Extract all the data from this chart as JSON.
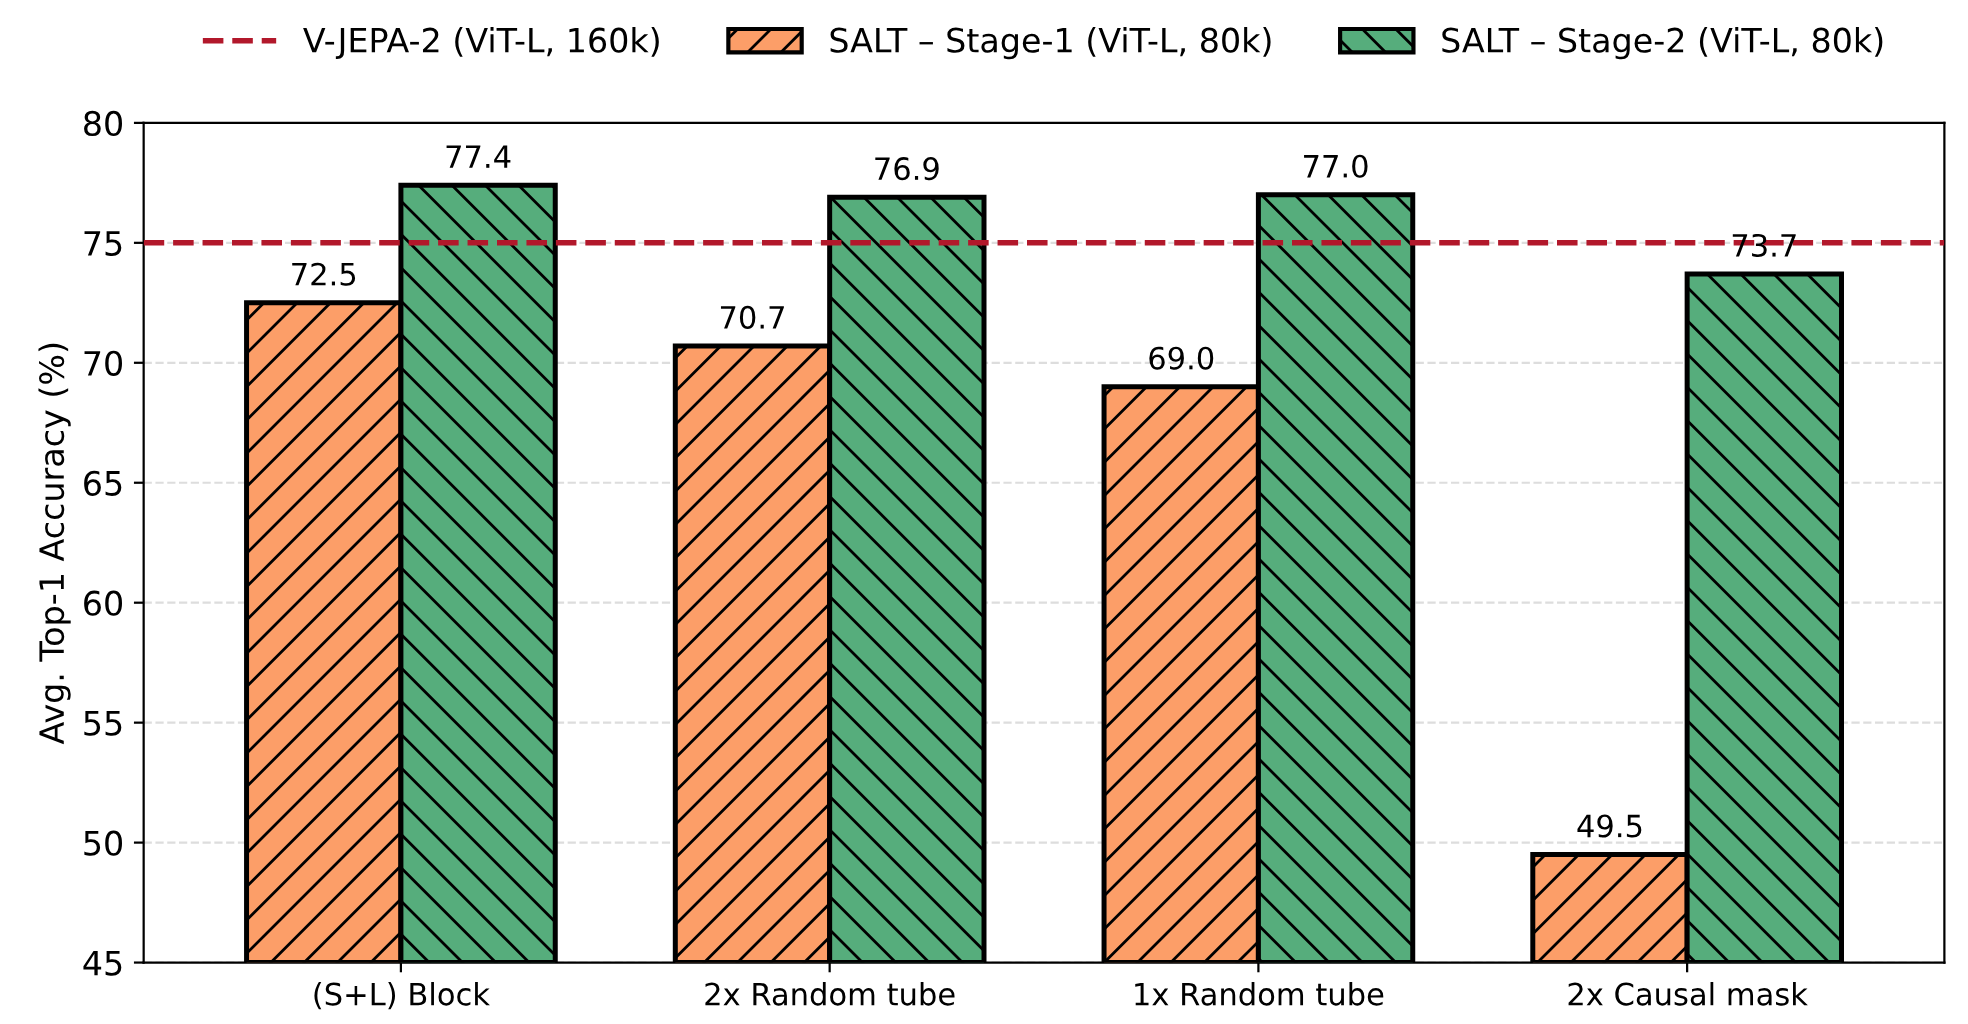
{
  "chart_data": {
    "type": "bar",
    "ylabel": "Avg. Top-1 Accuracy (%)",
    "categories": [
      "(S+L) Block",
      "2x Random tube",
      "1x Random tube",
      "2x Causal mask"
    ],
    "series": [
      {
        "name": "SALT – Stage-1 (ViT-L, 80k)",
        "color": "#fc9e68",
        "values": [
          72.5,
          70.7,
          69.0,
          49.5
        ],
        "value_labels": [
          "72.5",
          "70.7",
          "69.0",
          "49.5"
        ]
      },
      {
        "name": "SALT – Stage-2 (ViT-L, 80k)",
        "color": "#56ad7c",
        "values": [
          77.4,
          76.9,
          77.0,
          73.7
        ],
        "value_labels": [
          "77.4",
          "76.9",
          "77.0",
          "73.7"
        ]
      }
    ],
    "ref_lines": [
      {
        "axis": "y",
        "value": 75,
        "label": "V-JEPA-2 (ViT-L, 160k)",
        "color": "#b2182b",
        "line_style": "dashed"
      }
    ],
    "ylim": [
      45,
      80
    ],
    "yticks": [
      45,
      50,
      55,
      60,
      65,
      70,
      75,
      80
    ],
    "grid": "y",
    "legend": "top"
  }
}
